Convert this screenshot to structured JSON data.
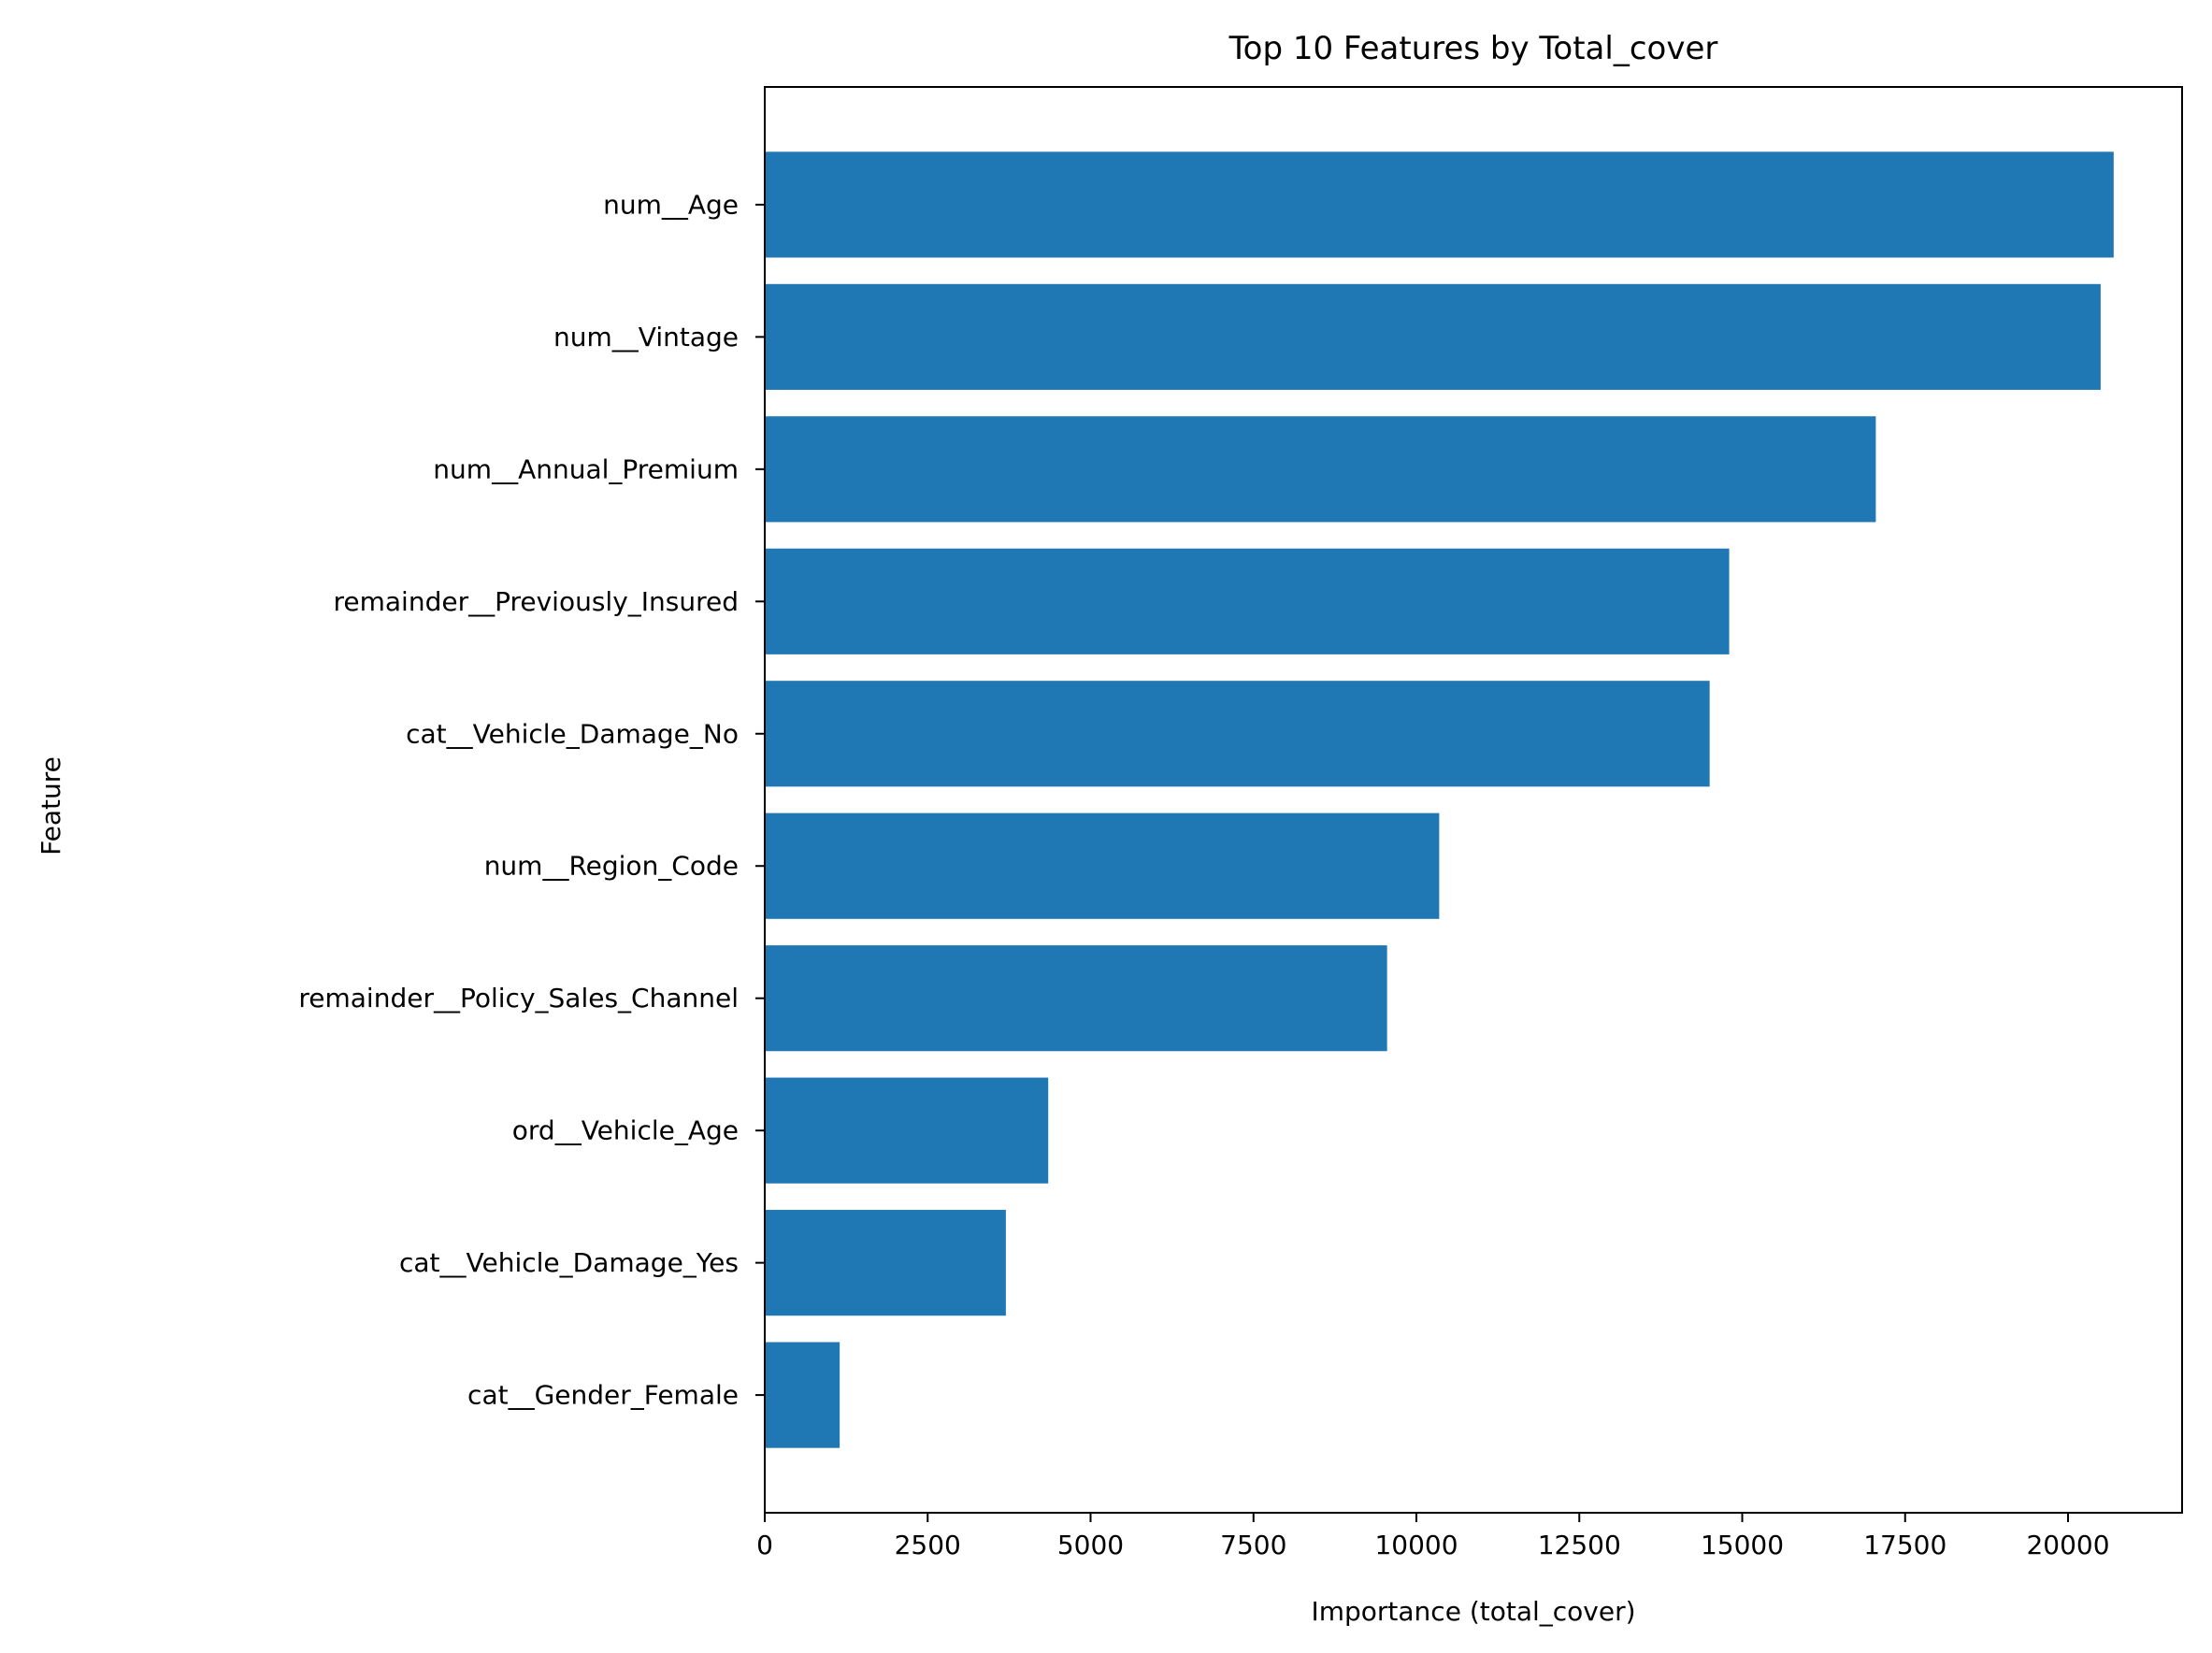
{
  "chart_data": {
    "type": "bar",
    "orientation": "horizontal",
    "title": "Top 10 Features by Total_cover",
    "xlabel": "Importance (total_cover)",
    "ylabel": "Feature",
    "categories": [
      "num__Age",
      "num__Vintage",
      "num__Annual_Premium",
      "remainder__Previously_Insured",
      "cat__Vehicle_Damage_No",
      "num__Region_Code",
      "remainder__Policy_Sales_Channel",
      "ord__Vehicle_Age",
      "cat__Vehicle_Damage_Yes",
      "cat__Gender_Female"
    ],
    "values": [
      20700,
      20500,
      17050,
      14800,
      14500,
      10350,
      9550,
      4350,
      3700,
      1150
    ],
    "xlim": [
      0,
      21750
    ],
    "xticks": [
      0,
      2500,
      5000,
      7500,
      10000,
      12500,
      15000,
      17500,
      20000
    ],
    "xtick_labels": [
      "0",
      "2500",
      "5000",
      "7500",
      "10000",
      "12500",
      "15000",
      "17500",
      "20000"
    ],
    "bar_color": "#1f77b4",
    "grid": false,
    "legend": "none"
  }
}
